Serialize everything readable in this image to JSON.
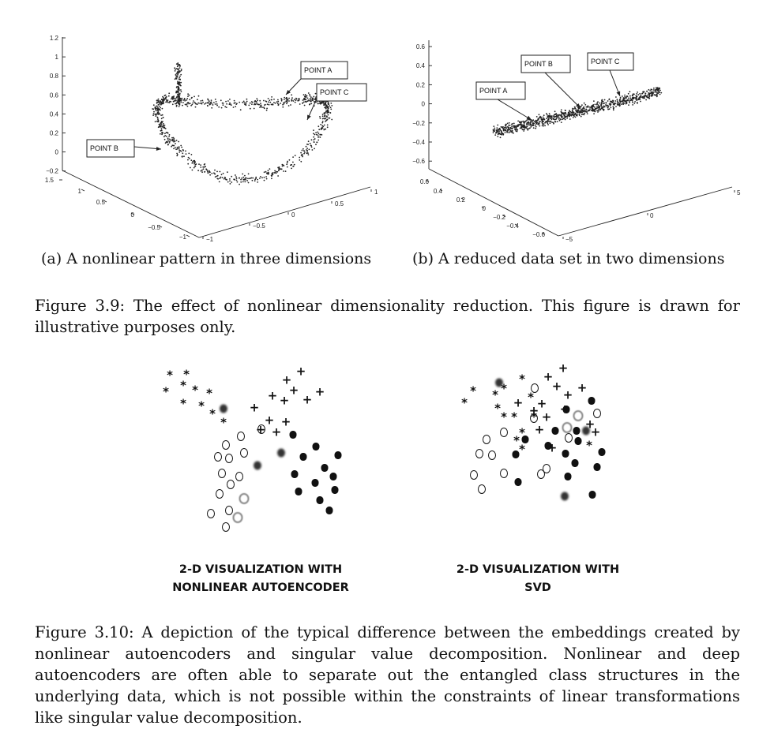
{
  "figure_3_9": {
    "subfig_a": {
      "caption": "(a) A nonlinear pattern in three dimensions",
      "chart_data": {
        "type": "scatter",
        "projection": "3d",
        "z_ticks": [
          "1.2",
          "1",
          "0.8",
          "0.6",
          "0.4",
          "0.2",
          "0",
          "−0.2"
        ],
        "y_ticks": [
          "1.5",
          "1",
          "0.5",
          "0",
          "−0.5",
          "−1"
        ],
        "x_ticks": [
          "−1",
          "−0.5",
          "0",
          "0.5",
          "1"
        ],
        "zlim": [
          -0.2,
          1.2
        ],
        "ylim": [
          -1,
          1.5
        ],
        "xlim": [
          -1,
          1
        ],
        "annotations": [
          "POINT A",
          "POINT C",
          "POINT B"
        ],
        "point_count_approx": 900
      }
    },
    "subfig_b": {
      "caption": "(b) A reduced data set in two dimensions",
      "chart_data": {
        "type": "scatter",
        "projection": "3d",
        "z_ticks": [
          "0.6",
          "0.4",
          "0.2",
          "0",
          "−0.2",
          "−0.4",
          "−0.6"
        ],
        "y_ticks": [
          "0.6",
          "0.4",
          "0.2",
          "0",
          "−0.2",
          "−0.4",
          "−0.6"
        ],
        "x_ticks": [
          "−5",
          "0",
          "5"
        ],
        "zlim": [
          -0.6,
          0.6
        ],
        "ylim": [
          -0.6,
          0.6
        ],
        "xlim": [
          -5,
          5
        ],
        "annotations": [
          "POINT A",
          "POINT B",
          "POINT C"
        ],
        "point_count_approx": 900
      }
    },
    "caption": "Figure 3.9: The effect of nonlinear dimensionality reduction. This figure is drawn for illustrative purposes only."
  },
  "figure_3_10": {
    "left_label_line1": "2-D VISUALIZATION WITH",
    "left_label_line2": "NONLINEAR AUTOENCODER",
    "right_label_line1": "2-D VISUALIZATION WITH",
    "right_label_line2": "SVD",
    "chart_data": [
      {
        "type": "scatter",
        "title": "2-D VISUALIZATION WITH NONLINEAR AUTOENCODER",
        "series": [
          {
            "marker": "asterisk",
            "points": [
              [
                215,
                476
              ],
              [
                236,
                475
              ],
              [
                210,
                497
              ],
              [
                232,
                489
              ],
              [
                247,
                495
              ],
              [
                265,
                499
              ],
              [
                232,
                512
              ],
              [
                255,
                515
              ],
              [
                269,
                525
              ],
              [
                283,
                536
              ]
            ]
          },
          {
            "marker": "plus",
            "points": [
              [
                381,
                471
              ],
              [
                363,
                482
              ],
              [
                372,
                495
              ],
              [
                345,
                502
              ],
              [
                360,
                508
              ],
              [
                389,
                507
              ],
              [
                405,
                497
              ],
              [
                322,
                517
              ],
              [
                341,
                533
              ],
              [
                362,
                535
              ],
              [
                330,
                545
              ],
              [
                350,
                548
              ]
            ]
          },
          {
            "marker": "open-circle",
            "points": [
              [
                331,
                544
              ],
              [
                305,
                553
              ],
              [
                286,
                564
              ],
              [
                276,
                579
              ],
              [
                290,
                581
              ],
              [
                309,
                574
              ],
              [
                281,
                600
              ],
              [
                292,
                614
              ],
              [
                303,
                604
              ],
              [
                278,
                626
              ],
              [
                290,
                647
              ],
              [
                267,
                651
              ],
              [
                286,
                668
              ]
            ]
          },
          {
            "marker": "filled-blob",
            "points": [
              [
                371,
                551
              ],
              [
                384,
                579
              ],
              [
                400,
                566
              ],
              [
                428,
                577
              ],
              [
                411,
                593
              ],
              [
                373,
                601
              ],
              [
                399,
                612
              ],
              [
                422,
                604
              ],
              [
                378,
                623
              ],
              [
                405,
                634
              ],
              [
                424,
                621
              ],
              [
                417,
                647
              ]
            ]
          },
          {
            "marker": "blurred",
            "points": [
              [
                283,
                518
              ],
              [
                356,
                574
              ],
              [
                326,
                590
              ],
              [
                309,
                632
              ],
              [
                301,
                656
              ]
            ]
          }
        ]
      },
      {
        "type": "scatter",
        "title": "2-D VISUALIZATION WITH SVD",
        "series": [
          {
            "marker": "asterisk",
            "points": [
              [
                599,
                496
              ],
              [
                588,
                511
              ],
              [
                627,
                501
              ],
              [
                638,
                493
              ],
              [
                661,
                481
              ],
              [
                630,
                518
              ],
              [
                638,
                529
              ],
              [
                651,
                529
              ],
              [
                661,
                549
              ],
              [
                654,
                559
              ],
              [
                661,
                570
              ],
              [
                676,
                529
              ],
              [
                672,
                504
              ],
              [
                746,
                565
              ]
            ]
          },
          {
            "marker": "plus",
            "points": [
              [
                713,
                467
              ],
              [
                694,
                478
              ],
              [
                705,
                490
              ],
              [
                737,
                492
              ],
              [
                719,
                501
              ],
              [
                656,
                511
              ],
              [
                686,
                512
              ],
              [
                676,
                521
              ],
              [
                715,
                519
              ],
              [
                692,
                529
              ],
              [
                747,
                538
              ],
              [
                683,
                545
              ],
              [
                754,
                548
              ],
              [
                699,
                568
              ]
            ]
          },
          {
            "marker": "open-circle",
            "points": [
              [
                677,
                492
              ],
              [
                756,
                524
              ],
              [
                676,
                530
              ],
              [
                638,
                548
              ],
              [
                616,
                557
              ],
              [
                607,
                575
              ],
              [
                623,
                577
              ],
              [
                638,
                600
              ],
              [
                600,
                602
              ],
              [
                610,
                620
              ],
              [
                685,
                601
              ],
              [
                692,
                594
              ],
              [
                720,
                555
              ]
            ]
          },
          {
            "marker": "filled-blob",
            "points": [
              [
                749,
                508
              ],
              [
                717,
                519
              ],
              [
                703,
                546
              ],
              [
                730,
                546
              ],
              [
                665,
                557
              ],
              [
                732,
                559
              ],
              [
                694,
                565
              ],
              [
                716,
                575
              ],
              [
                762,
                573
              ],
              [
                728,
                587
              ],
              [
                756,
                592
              ],
              [
                653,
                576
              ],
              [
                719,
                604
              ],
              [
                656,
                611
              ],
              [
                750,
                627
              ]
            ]
          },
          {
            "marker": "blurred",
            "points": [
              [
                632,
                485
              ],
              [
                732,
                527
              ],
              [
                718,
                542
              ],
              [
                742,
                546
              ],
              [
                715,
                629
              ]
            ]
          }
        ]
      }
    ],
    "caption": "Figure 3.10: A depiction of the typical difference between the embeddings created by nonlinear autoencoders and singular value decomposition. Nonlinear and deep autoencoders are often able to separate out the entangled class structures in the underlying data, which is not possible within the constraints of linear transformations like singular value decomposition."
  }
}
